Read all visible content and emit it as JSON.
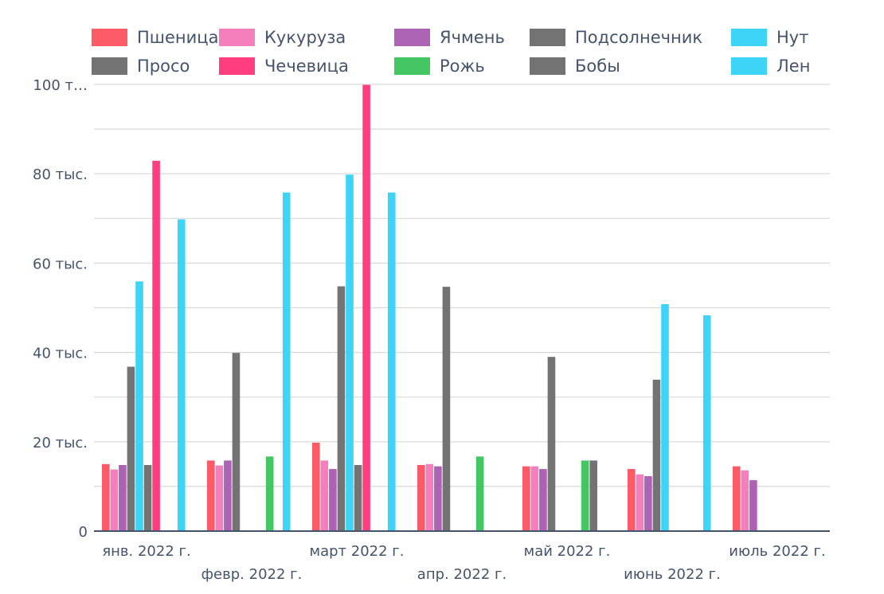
{
  "chart_data": {
    "type": "bar",
    "title": "",
    "xlabel": "",
    "ylabel": "",
    "ylim": [
      0,
      100000
    ],
    "grid": true,
    "legend_position": "top",
    "y_ticks": [
      {
        "value": 0,
        "label": "0"
      },
      {
        "value": 20000,
        "label": "20 тыс."
      },
      {
        "value": 40000,
        "label": "40 тыс."
      },
      {
        "value": 60000,
        "label": "60 тыс."
      },
      {
        "value": 80000,
        "label": "80 тыс."
      },
      {
        "value": 100000,
        "label": "100 т…"
      }
    ],
    "categories": [
      "янв. 2022 г.",
      "февр. 2022 г.",
      "март 2022 г.",
      "апр. 2022 г.",
      "май 2022 г.",
      "июнь 2022 г.",
      "июль 2022 г."
    ],
    "series": [
      {
        "name": "Пшеница",
        "color": "#fd5a68",
        "values": [
          15000,
          15800,
          19800,
          14800,
          14500,
          13900,
          14500
        ]
      },
      {
        "name": "Кукуруза",
        "color": "#f47fbc",
        "values": [
          13800,
          14700,
          15800,
          15000,
          14500,
          12700,
          13600
        ]
      },
      {
        "name": "Ячмень",
        "color": "#ad63b3",
        "values": [
          14800,
          15800,
          13900,
          14500,
          13900,
          12300,
          11400
        ]
      },
      {
        "name": "Подсолнечник",
        "color": "#737373",
        "values": [
          36800,
          39900,
          54800,
          54700,
          39000,
          33900,
          null
        ]
      },
      {
        "name": "Нут",
        "color": "#3dd4f7",
        "values": [
          55900,
          null,
          79800,
          null,
          null,
          50800,
          null
        ]
      },
      {
        "name": "Просо",
        "color": "#737373",
        "values": [
          14800,
          null,
          14800,
          null,
          null,
          null,
          null
        ]
      },
      {
        "name": "Чечевица",
        "color": "#ff3d7f",
        "values": [
          82900,
          null,
          99900,
          null,
          null,
          null,
          null
        ]
      },
      {
        "name": "Рожь",
        "color": "#44c665",
        "values": [
          null,
          16700,
          null,
          16700,
          15800,
          null,
          null
        ]
      },
      {
        "name": "Бобы",
        "color": "#737373",
        "values": [
          null,
          null,
          null,
          null,
          15800,
          null,
          null
        ]
      },
      {
        "name": "Лен",
        "color": "#3dd4f7",
        "values": [
          69800,
          75800,
          75800,
          null,
          null,
          48300,
          null
        ]
      }
    ]
  }
}
